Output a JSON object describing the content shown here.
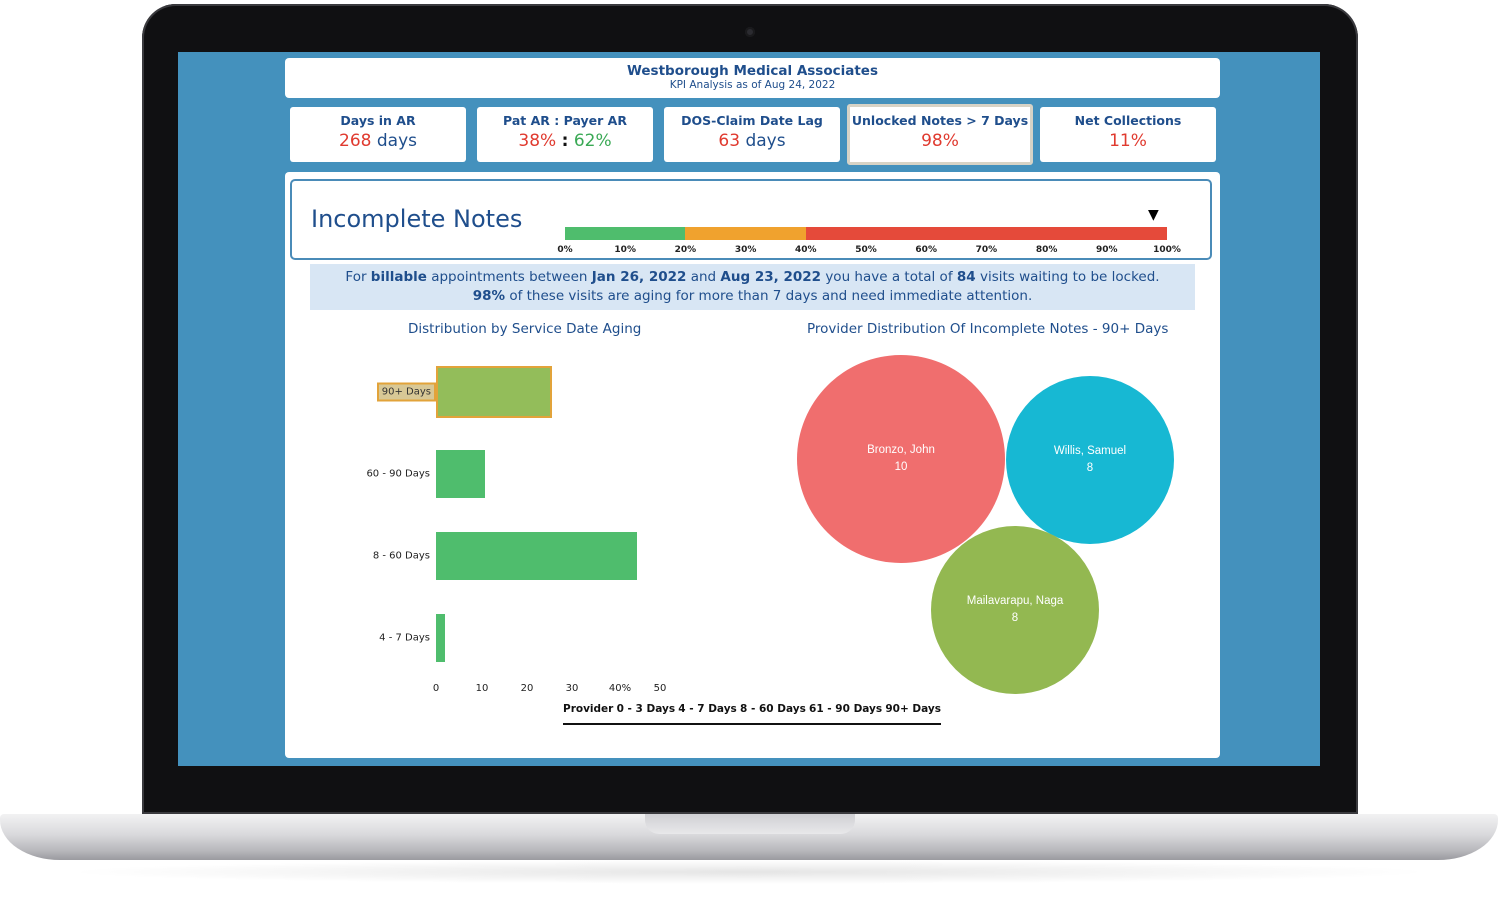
{
  "header": {
    "company": "Westborough Medical Associates",
    "subtitle": "KPI Analysis as of Aug 24, 2022"
  },
  "kpis": [
    {
      "label": "Days in AR",
      "value": "268",
      "unit": "days",
      "value_color": "#e03a2f"
    },
    {
      "label": "Pat AR : Payer AR",
      "value_a": "38%",
      "separator": ":",
      "value_b": "62%",
      "color_a": "#e03a2f",
      "color_b": "#3aa955"
    },
    {
      "label": "DOS-Claim Date Lag",
      "value": "63",
      "unit": "days",
      "value_color": "#e03a2f"
    },
    {
      "label": "Unlocked Notes > 7 Days",
      "value": "98%",
      "value_color": "#e03a2f",
      "selected": true
    },
    {
      "label": "Net Collections",
      "value": "11%",
      "value_color": "#e03a2f"
    }
  ],
  "incomplete_notes": {
    "title": "Incomplete Notes",
    "gauge": {
      "value_percent": 98,
      "segments": [
        {
          "from": 0,
          "to": 20,
          "color": "#4fbd6d"
        },
        {
          "from": 20,
          "to": 40,
          "color": "#f0a22e"
        },
        {
          "from": 40,
          "to": 100,
          "color": "#e54a3a"
        }
      ],
      "ticks": [
        "0%",
        "10%",
        "20%",
        "30%",
        "40%",
        "50%",
        "60%",
        "70%",
        "80%",
        "90%",
        "100%"
      ],
      "marker": "▼"
    },
    "summary": {
      "p1_pre": "For ",
      "p1_b1": "billable",
      "p1_mid1": " appointments between ",
      "p1_b2": "Jan 26, 2022",
      "p1_mid2": " and ",
      "p1_b3": "Aug 23, 2022",
      "p1_mid3": " you have a total of ",
      "p1_b4": "84",
      "p1_post": " visits waiting to be locked.",
      "p2_b1": "98%",
      "p2_post": " of these visits are aging for more than 7 days and need immediate attention."
    }
  },
  "chart_data": [
    {
      "type": "bar",
      "orientation": "horizontal",
      "title": "Distribution by Service Date Aging",
      "categories": [
        "90+ Days",
        "60 - 90 Days",
        "8 - 60 Days",
        "4 - 7 Days"
      ],
      "values": [
        26,
        11,
        45,
        2
      ],
      "highlighted": "90+ Days",
      "x_ticks": [
        "0",
        "10",
        "20",
        "30",
        "40%",
        "50"
      ],
      "xlim": [
        0,
        50
      ],
      "colors": {
        "bar": "#4fbd6d",
        "highlight": "#93bd5a",
        "highlight_border": "#e2a33a"
      },
      "legend": [
        "Provider",
        "0 - 3 Days",
        "4 - 7 Days",
        "8 - 60 Days",
        "61 - 90 Days",
        "90+ Days"
      ]
    },
    {
      "type": "bubble",
      "title": "Provider Distribution Of Incomplete Notes -  90+ Days",
      "bubbles": [
        {
          "name": "Bronzo, John",
          "value": 10,
          "color": "#f06e6e"
        },
        {
          "name": "Willis, Samuel",
          "value": 8,
          "color": "#17b8d3"
        },
        {
          "name": "Mailavarapu, Naga",
          "value": 8,
          "color": "#93b851"
        }
      ]
    }
  ]
}
